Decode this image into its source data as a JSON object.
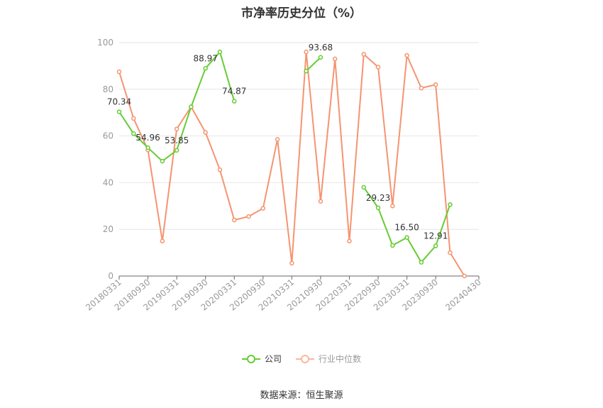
{
  "chart_data": {
    "type": "line",
    "title": "市净率历史分位（%）",
    "ylim": [
      0,
      100
    ],
    "yticks": [
      0,
      20,
      40,
      60,
      80,
      100
    ],
    "grid": true,
    "legend_position": "bottom",
    "categories": [
      "20180331",
      "20180630",
      "20180930",
      "20181231",
      "20190331",
      "20190630",
      "20190930",
      "20191231",
      "20200331",
      "20200630",
      "20200930",
      "20201231",
      "20210331",
      "20210630",
      "20210930",
      "20211231",
      "20220331",
      "20220630",
      "20220930",
      "20221231",
      "20230331",
      "20230630",
      "20230930",
      "20231231",
      "20240331",
      "20240430"
    ],
    "xtick_labels": [
      "20180331",
      "20180930",
      "20190331",
      "20190930",
      "20200331",
      "20200930",
      "20210331",
      "20210930",
      "20220331",
      "20220930",
      "20230331",
      "20230930",
      "20240430"
    ],
    "series": [
      {
        "name": "公司",
        "color": "#66cc33",
        "values": [
          70.34,
          61.0,
          54.96,
          49.2,
          53.85,
          72.5,
          88.97,
          96.0,
          74.87,
          null,
          null,
          null,
          null,
          87.8,
          93.68,
          null,
          null,
          38.0,
          29.23,
          13.1,
          16.5,
          5.9,
          12.91,
          30.6,
          null,
          null
        ],
        "labels": [
          {
            "index": 0,
            "text": "70.34"
          },
          {
            "index": 2,
            "text": "54.96"
          },
          {
            "index": 4,
            "text": "53.85"
          },
          {
            "index": 6,
            "text": "88.97"
          },
          {
            "index": 8,
            "text": "74.87"
          },
          {
            "index": 14,
            "text": "93.68"
          },
          {
            "index": 18,
            "text": "29.23"
          },
          {
            "index": 20,
            "text": "16.50"
          },
          {
            "index": 22,
            "text": "12.91"
          }
        ]
      },
      {
        "name": "行业中位数",
        "color": "#f59470",
        "values": [
          87.5,
          67.5,
          54.0,
          15.0,
          63.0,
          72.5,
          61.5,
          45.5,
          24.0,
          25.5,
          29.0,
          58.5,
          5.5,
          96.0,
          32.0,
          93.0,
          15.0,
          95.0,
          89.5,
          30.0,
          94.5,
          80.5,
          82.0,
          10.0,
          0.0,
          null
        ],
        "labels": []
      }
    ]
  },
  "legend": {
    "items": [
      {
        "label": "公司",
        "color": "#66cc33",
        "muted": false
      },
      {
        "label": "行业中位数",
        "color": "#f59470",
        "muted": true
      }
    ]
  },
  "footer": {
    "source": "数据来源：恒生聚源"
  }
}
